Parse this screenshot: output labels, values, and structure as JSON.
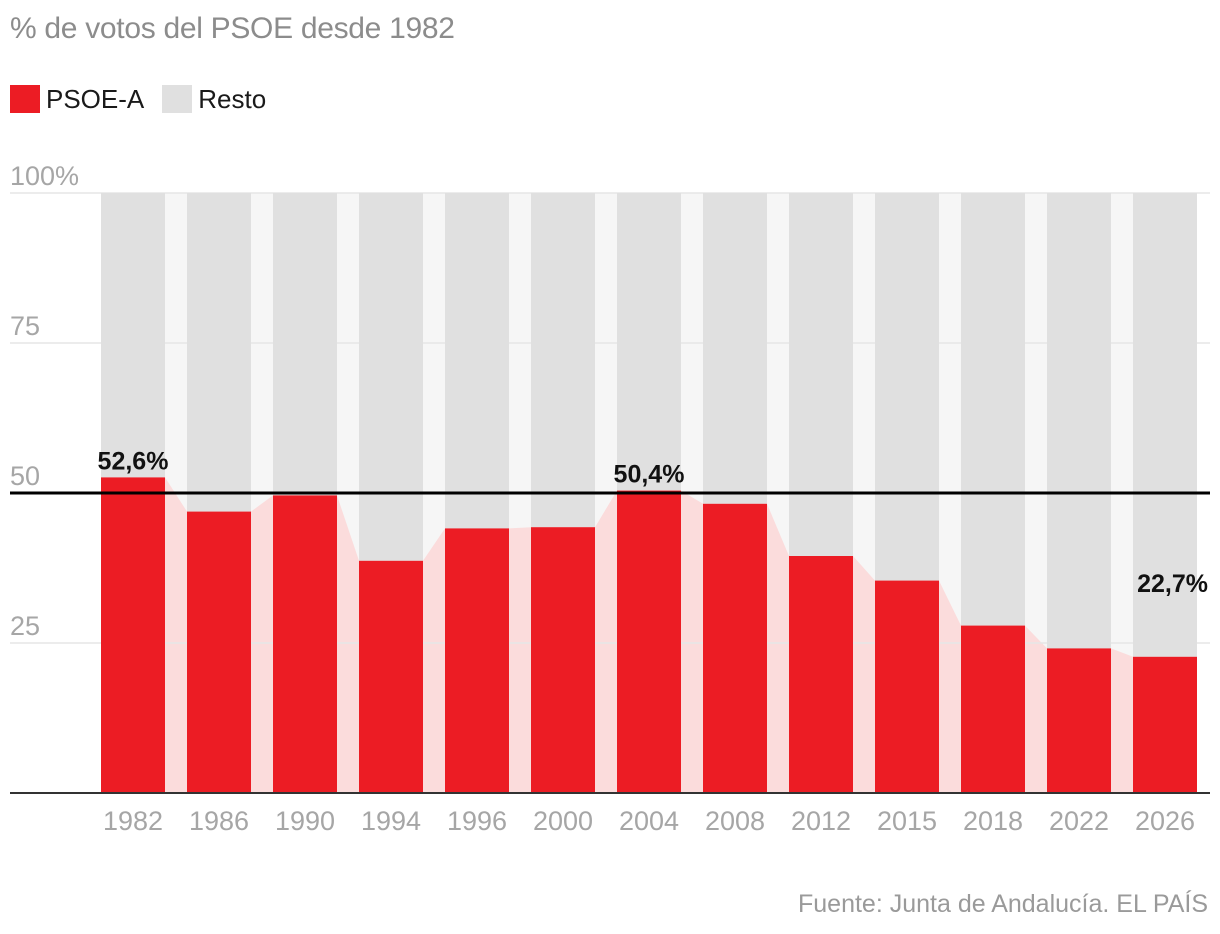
{
  "title": "% de votos del PSOE desde 1982",
  "legend": [
    {
      "label": "PSOE-A",
      "color": "#ec1c24"
    },
    {
      "label": "Resto",
      "color": "#e0e0e0"
    }
  ],
  "source": "Fuente: Junta de Andalucía. EL PAÍS",
  "colors": {
    "psoe": "#ec1c24",
    "psoe_band": "#fbdcdc",
    "resto": "#e0e0e0",
    "resto_band": "#f6f6f6",
    "grid": "#e6e6e6",
    "tick_text": "#a6a6a6",
    "reference_line": "#000000",
    "annotation_text": "#111111"
  },
  "chart_data": {
    "type": "bar",
    "stacked": true,
    "title": "% de votos del PSOE desde 1982",
    "xlabel": "",
    "ylabel": "",
    "ylim": [
      0,
      100
    ],
    "y_ticks": [
      {
        "value": 100,
        "label": "100%"
      },
      {
        "value": 75,
        "label": "75"
      },
      {
        "value": 50,
        "label": "50"
      },
      {
        "value": 25,
        "label": "25"
      }
    ],
    "categories": [
      "1982",
      "1986",
      "1990",
      "1994",
      "1996",
      "2000",
      "2004",
      "2008",
      "2012",
      "2015",
      "2018",
      "2022",
      "2026"
    ],
    "series": [
      {
        "name": "PSOE-A",
        "values": [
          52.6,
          46.9,
          49.6,
          38.7,
          44.1,
          44.3,
          50.4,
          48.2,
          39.5,
          35.4,
          27.9,
          24.1,
          22.7
        ]
      },
      {
        "name": "Resto",
        "values": [
          47.4,
          53.1,
          50.4,
          61.3,
          55.9,
          55.7,
          49.6,
          51.8,
          60.5,
          64.6,
          72.1,
          75.9,
          77.3
        ]
      }
    ],
    "reference_line": 50,
    "annotations": [
      {
        "category": "1982",
        "label": "52,6%"
      },
      {
        "category": "2004",
        "label": "50,4%"
      },
      {
        "category": "2026",
        "label": "22,7%"
      }
    ],
    "grid": true,
    "legend_position": "top-left"
  }
}
